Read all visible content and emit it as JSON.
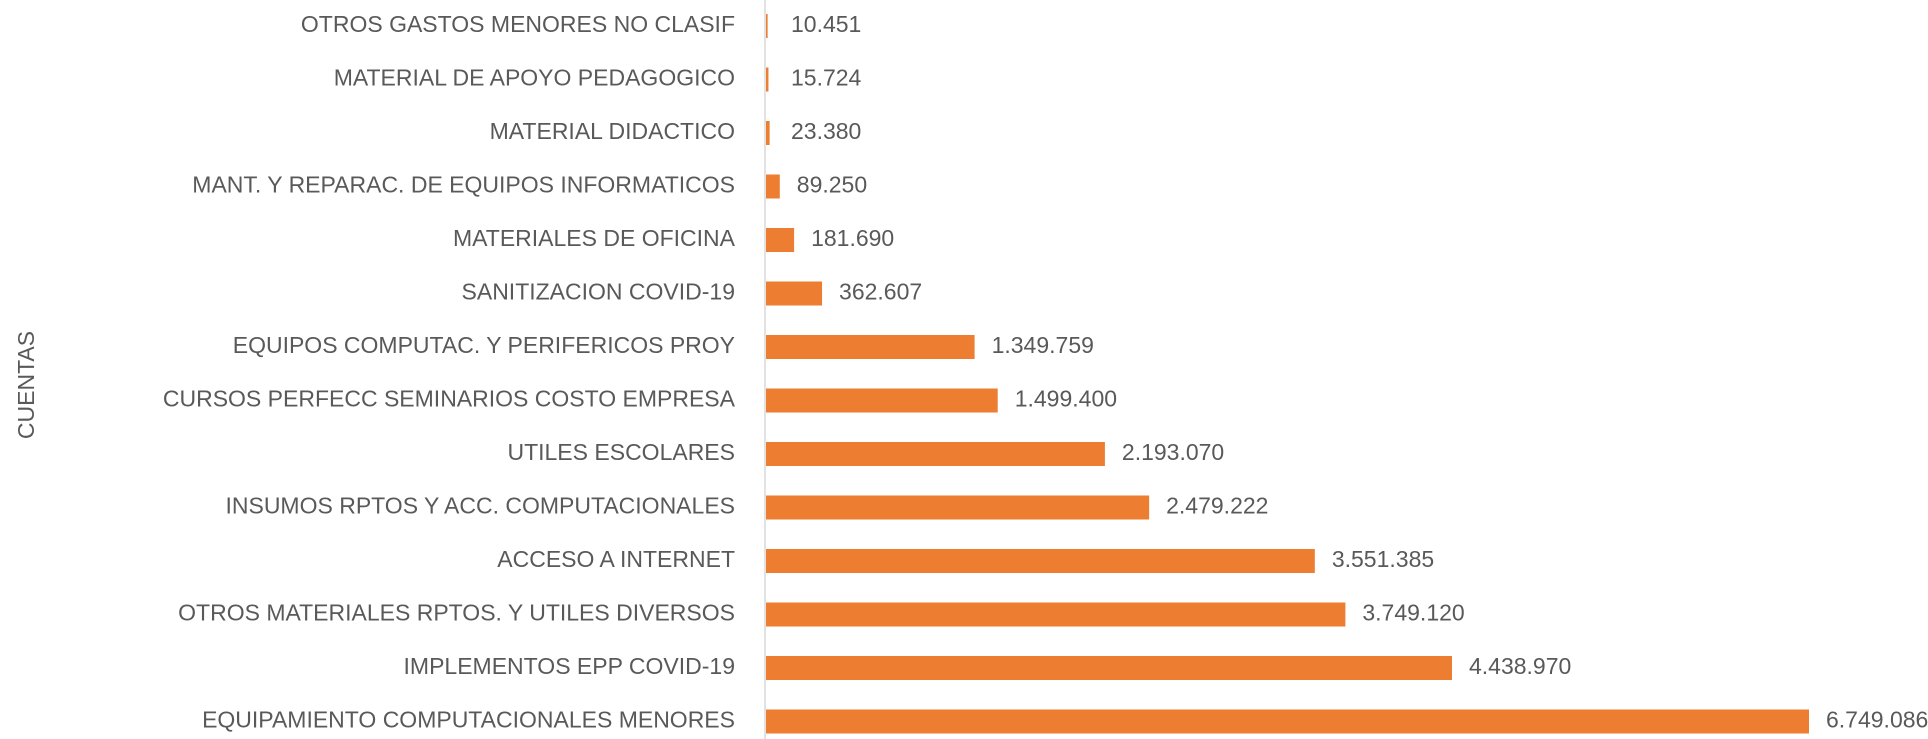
{
  "chart_data": {
    "type": "barh",
    "y_label": "CUENTAS",
    "color": "#ed7d31",
    "categories": [
      "OTROS GASTOS MENORES NO CLASIF",
      "MATERIAL DE APOYO PEDAGOGICO",
      "MATERIAL DIDACTICO",
      "MANT. Y REPARAC. DE EQUIPOS INFORMATICOS",
      "MATERIALES DE OFICINA",
      "SANITIZACION  COVID-19",
      "EQUIPOS COMPUTAC. Y PERIFERICOS PROY",
      "CURSOS PERFECC  SEMINARIOS COSTO EMPRESA",
      "UTILES ESCOLARES",
      "INSUMOS  RPTOS Y ACC. COMPUTACIONALES",
      "ACCESO A INTERNET",
      "OTROS MATERIALES  RPTOS. Y UTILES DIVERSOS",
      "IMPLEMENTOS EPP COVID-19",
      "EQUIPAMIENTO COMPUTACIONALES MENORES"
    ],
    "values": [
      10451,
      15724,
      23380,
      89250,
      181690,
      362607,
      1349759,
      1499400,
      2193070,
      2479222,
      3551385,
      3749120,
      4438970,
      6749086
    ],
    "value_labels": [
      "10.451",
      "15.724",
      "23.380",
      "89.250",
      "181.690",
      "362.607",
      "1.349.759",
      "1.499.400",
      "2.193.070",
      "2.479.222",
      "3.551.385",
      "3.749.120",
      "4.438.970",
      "6.749.086"
    ]
  }
}
